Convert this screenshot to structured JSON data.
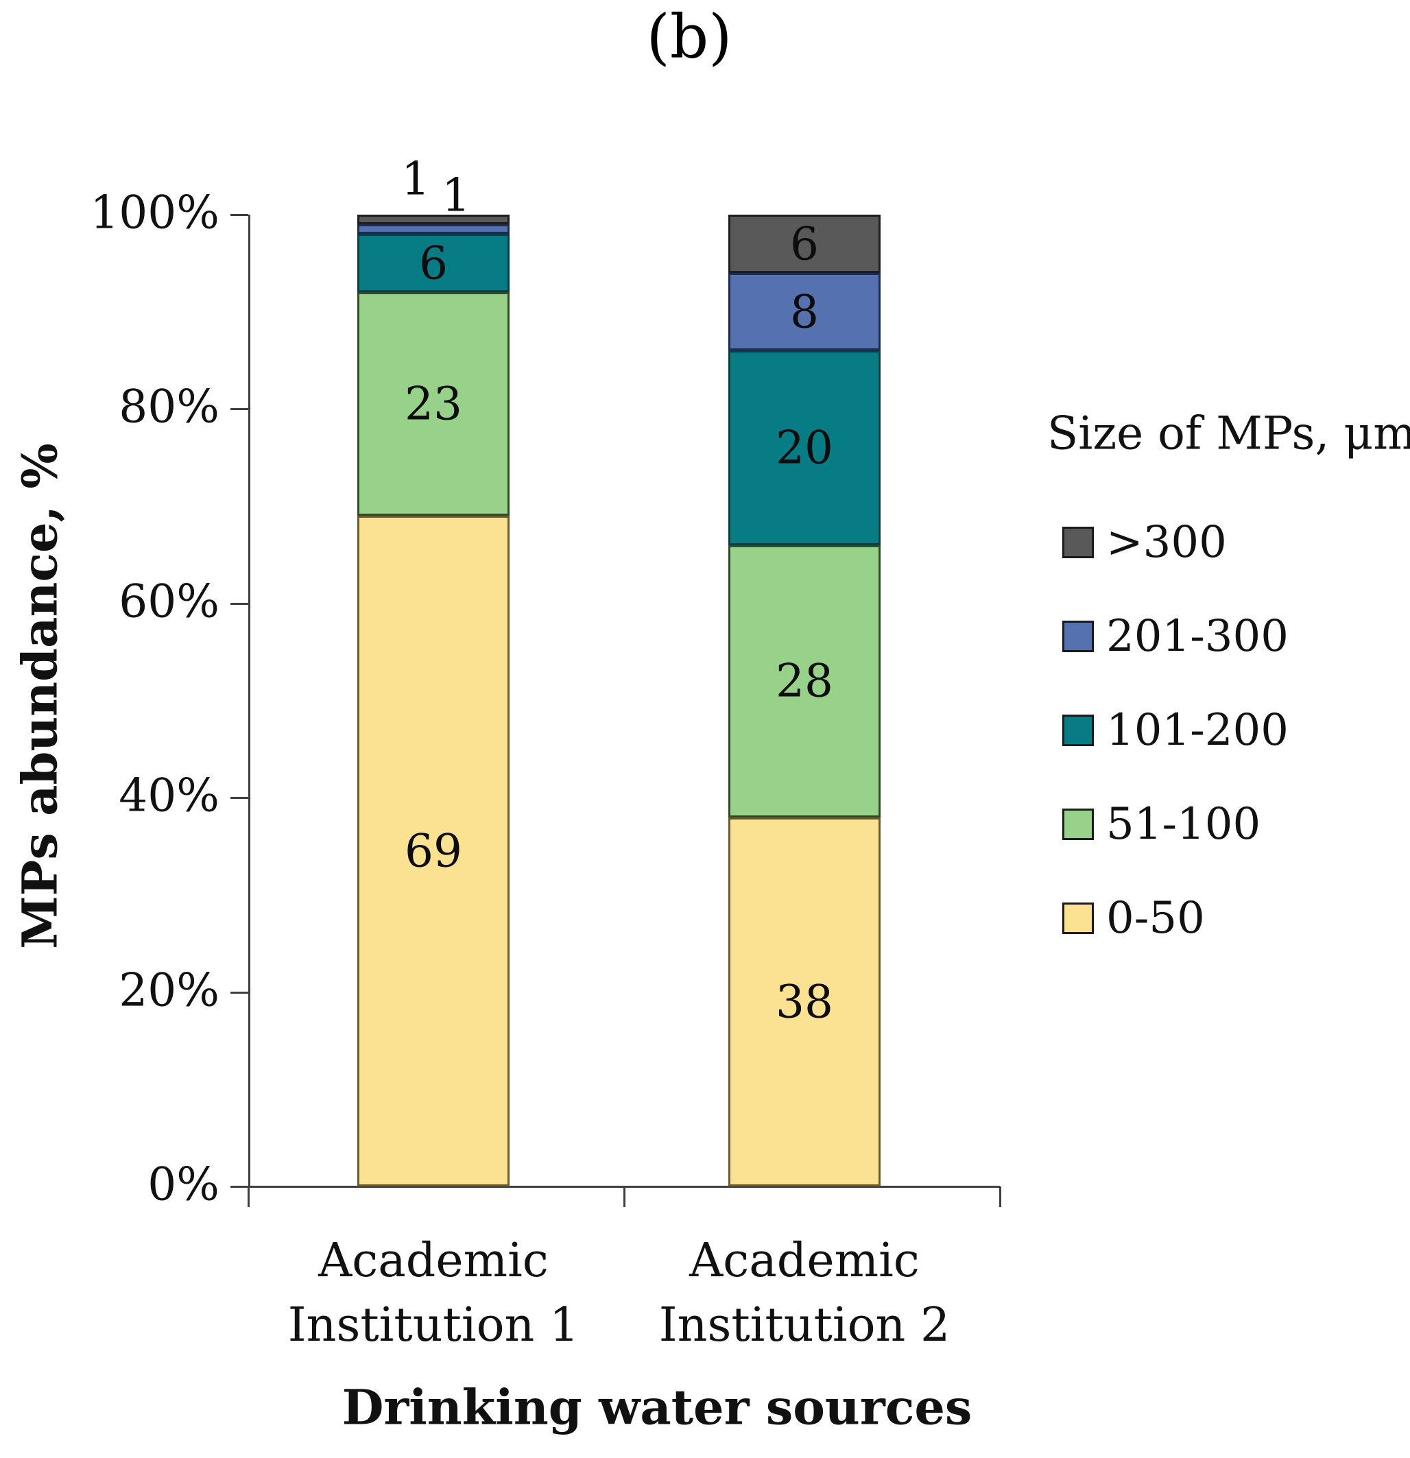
{
  "figure_label": "(b)",
  "axes": {
    "y_title": "MPs abundance, %",
    "x_title": "Drinking water sources",
    "y_tick_labels": [
      "100%",
      "80%",
      "60%",
      "40%",
      "20%",
      "0%"
    ]
  },
  "legend": {
    "title": "Size of MPs, μm",
    "items_top_to_bottom": [
      ">300",
      "201-300",
      "101-200",
      "51-100",
      "0-50"
    ]
  },
  "chart_data": {
    "type": "bar",
    "stacked": true,
    "units": "percent",
    "title": "(b)",
    "xlabel": "Drinking water sources",
    "ylabel": "MPs abundance, %",
    "ylim": [
      0,
      100
    ],
    "y_ticks_percent": [
      100,
      80,
      60,
      40,
      20,
      0
    ],
    "grid": false,
    "legend_title": "Size of MPs, μm",
    "legend_position": "right",
    "categories": [
      "Academic Institution 1",
      "Academic Institution 2"
    ],
    "categories_lines": [
      [
        "Academic",
        "Institution 1"
      ],
      [
        "Academic",
        "Institution 2"
      ]
    ],
    "series": [
      {
        "name": "0-50",
        "values": [
          69,
          38
        ],
        "color": "#FBE192",
        "border": "#6B5B2E"
      },
      {
        "name": "51-100",
        "values": [
          23,
          28
        ],
        "color": "#98D189",
        "border": "#2E4D27"
      },
      {
        "name": "101-200",
        "values": [
          6,
          20
        ],
        "color": "#087C85",
        "border": "#063F44"
      },
      {
        "name": "201-300",
        "values": [
          1,
          8
        ],
        "color": "#5571B0",
        "border": "#1C2B50"
      },
      {
        "name": ">300",
        "values": [
          1,
          6
        ],
        "color": "#595959",
        "border": "#1E1E1E"
      }
    ]
  }
}
